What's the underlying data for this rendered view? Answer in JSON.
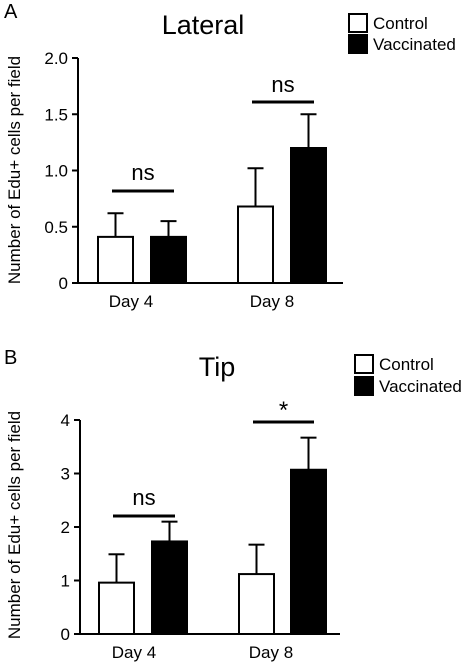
{
  "chart_data": [
    {
      "panel_label": "A",
      "type": "bar",
      "title": "Lateral",
      "xlabel": "",
      "ylabel": "Number of Edu+ cells per field",
      "categories": [
        "Day 4",
        "Day 8"
      ],
      "ylim": [
        0,
        2.0
      ],
      "yticks": [
        "0",
        "0.5",
        "1.0",
        "1.5",
        "2.0"
      ],
      "series": [
        {
          "name": "Control",
          "fill": "#ffffff",
          "values": [
            0.41,
            0.68
          ],
          "errors": [
            0.21,
            0.34
          ]
        },
        {
          "name": "Vaccinated",
          "fill": "#000000",
          "values": [
            0.41,
            1.2
          ],
          "errors": [
            0.14,
            0.3
          ]
        }
      ],
      "annotations": [
        "ns",
        "ns"
      ],
      "legend_position": "top-right",
      "grid": false
    },
    {
      "panel_label": "B",
      "type": "bar",
      "title": "Tip",
      "xlabel": "",
      "ylabel": "Number of Edu+ cells per field",
      "categories": [
        "Day 4",
        "Day 8"
      ],
      "ylim": [
        0,
        4
      ],
      "yticks": [
        "0",
        "1",
        "2",
        "3",
        "4"
      ],
      "series": [
        {
          "name": "Control",
          "fill": "#ffffff",
          "values": [
            0.96,
            1.12
          ],
          "errors": [
            0.53,
            0.55
          ]
        },
        {
          "name": "Vaccinated",
          "fill": "#000000",
          "values": [
            1.73,
            3.07
          ],
          "errors": [
            0.37,
            0.6
          ]
        }
      ],
      "annotations": [
        "ns",
        "*"
      ],
      "legend_position": "top-right",
      "grid": false
    }
  ]
}
